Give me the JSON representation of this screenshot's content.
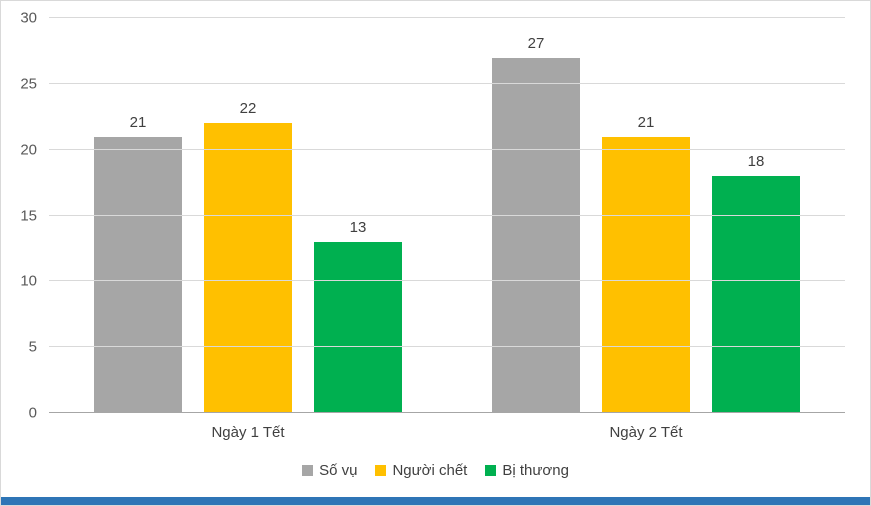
{
  "chart_data": {
    "type": "bar",
    "title": "",
    "categories": [
      "Ngày 1 Tết",
      "Ngày 2 Tết"
    ],
    "series": [
      {
        "name": "Số vụ",
        "color": "#a6a6a6",
        "values": [
          21,
          27
        ]
      },
      {
        "name": "Người chết",
        "color": "#ffc000",
        "values": [
          22,
          21
        ]
      },
      {
        "name": "Bị thương",
        "color": "#00b050",
        "values": [
          13,
          18
        ]
      }
    ],
    "xlabel": "",
    "ylabel": "",
    "ylim": [
      0,
      30
    ],
    "yticks": [
      0,
      5,
      10,
      15,
      20,
      25,
      30
    ],
    "grid": true,
    "legend_position": "bottom",
    "data_labels": true
  },
  "colors": {
    "background": "#ffffff",
    "border": "#d9d9d9",
    "gridline": "#d9d9d9",
    "baseline": "#a6a6a6",
    "axis_text": "#595959",
    "label_text": "#404040",
    "bottom_accent_bar": "#2e75b6"
  }
}
